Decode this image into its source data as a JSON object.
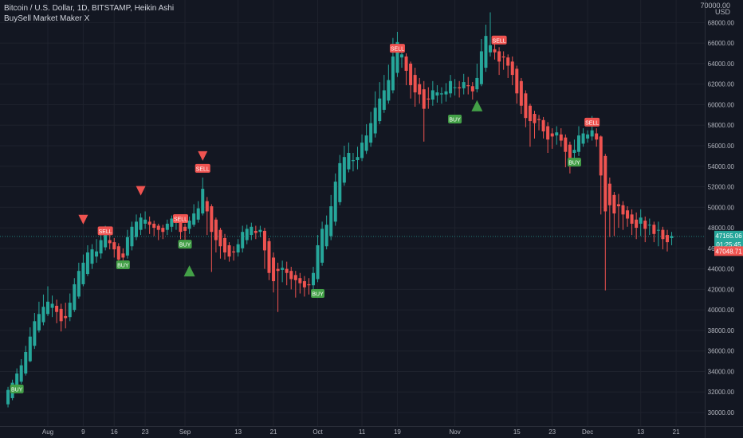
{
  "header": {
    "title": "Bitcoin / U.S. Dollar, 1D, BITSTAMP, Heikin Ashi",
    "indicator": "BuySell Market Maker X"
  },
  "axis": {
    "unit_top": "70000.00",
    "unit": "USD"
  },
  "price_tags": {
    "last_price": "47165.06",
    "countdown": "01:25:45",
    "open_price": "47048.71"
  },
  "colors": {
    "background": "#131722",
    "up": "#26a69a",
    "down": "#ef5350",
    "buy": "#43a047",
    "sell": "#ef5350",
    "grid": "#1e222d",
    "text": "#b2b5be"
  },
  "chart_data": {
    "type": "candlestick",
    "title": "Bitcoin / U.S. Dollar, 1D, BITSTAMP, Heikin Ashi",
    "y_range": [
      29000,
      70000
    ],
    "y_ticks": [
      30000,
      32000,
      34000,
      36000,
      38000,
      40000,
      42000,
      44000,
      46000,
      48000,
      50000,
      52000,
      54000,
      56000,
      58000,
      60000,
      62000,
      64000,
      66000,
      68000
    ],
    "x_ticks": [
      {
        "label": "Aug",
        "day": 0
      },
      {
        "label": "9",
        "day": 8
      },
      {
        "label": "16",
        "day": 15
      },
      {
        "label": "23",
        "day": 22
      },
      {
        "label": "Sep",
        "day": 31
      },
      {
        "label": "13",
        "day": 43
      },
      {
        "label": "21",
        "day": 51
      },
      {
        "label": "Oct",
        "day": 61
      },
      {
        "label": "11",
        "day": 71
      },
      {
        "label": "19",
        "day": 79
      },
      {
        "label": "Nov",
        "day": 92
      },
      {
        "label": "15",
        "day": 106
      },
      {
        "label": "23",
        "day": 114
      },
      {
        "label": "Dec",
        "day": 122
      },
      {
        "label": "13",
        "day": 134
      },
      {
        "label": "21",
        "day": 142
      }
    ],
    "candles": [
      [
        -9,
        30800,
        32200,
        32500,
        30500
      ],
      [
        -8,
        31400,
        32900,
        33200,
        31200
      ],
      [
        -7,
        32100,
        33800,
        34300,
        31900
      ],
      [
        -6,
        33000,
        34600,
        35200,
        32800
      ],
      [
        -5,
        33800,
        35900,
        36500,
        33600
      ],
      [
        -4,
        35000,
        37400,
        38300,
        34900
      ],
      [
        -3,
        36500,
        38900,
        39700,
        36200
      ],
      [
        -2,
        38000,
        39600,
        40800,
        37800
      ],
      [
        -1,
        38800,
        40300,
        41500,
        38500
      ],
      [
        0,
        39600,
        40800,
        42300,
        39400
      ],
      [
        1,
        40200,
        40600,
        41400,
        39300
      ],
      [
        2,
        40400,
        39800,
        41000,
        38700
      ],
      [
        3,
        40100,
        38900,
        40600,
        37900
      ],
      [
        4,
        39400,
        39200,
        40700,
        38200
      ],
      [
        5,
        39300,
        40700,
        41600,
        38900
      ],
      [
        6,
        40000,
        42500,
        43100,
        39800
      ],
      [
        7,
        41300,
        43800,
        44600,
        41100
      ],
      [
        8,
        42500,
        44600,
        45400,
        42300
      ],
      [
        9,
        43500,
        45600,
        46300,
        43300
      ],
      [
        10,
        44500,
        45900,
        46400,
        44000
      ],
      [
        11,
        45200,
        45700,
        46900,
        44600
      ],
      [
        12,
        45500,
        46800,
        47400,
        45000
      ],
      [
        13,
        46100,
        47500,
        48200,
        45800
      ],
      [
        14,
        46800,
        46500,
        47600,
        45900
      ],
      [
        15,
        46600,
        45900,
        47000,
        45100
      ],
      [
        16,
        46200,
        44900,
        46500,
        44500
      ],
      [
        17,
        45500,
        45100,
        46000,
        44300
      ],
      [
        18,
        45300,
        47100,
        47800,
        45000
      ],
      [
        19,
        46200,
        48100,
        48600,
        45800
      ],
      [
        20,
        47100,
        48600,
        49300,
        46800
      ],
      [
        21,
        47800,
        49000,
        49400,
        47300
      ],
      [
        22,
        48400,
        48800,
        49600,
        47900
      ],
      [
        23,
        48600,
        48300,
        49100,
        47400
      ],
      [
        24,
        48400,
        48000,
        48700,
        47200
      ],
      [
        25,
        48200,
        47800,
        48400,
        46800
      ],
      [
        26,
        48000,
        47600,
        48300,
        46900
      ],
      [
        27,
        47800,
        48400,
        48800,
        47300
      ],
      [
        28,
        48100,
        48900,
        49200,
        47600
      ],
      [
        29,
        48500,
        48600,
        49300,
        47800
      ],
      [
        30,
        48600,
        47600,
        48900,
        46900
      ],
      [
        31,
        48100,
        47700,
        48400,
        46800
      ],
      [
        32,
        47900,
        48700,
        49100,
        47400
      ],
      [
        33,
        48300,
        49400,
        50300,
        48100
      ],
      [
        34,
        48800,
        49900,
        50600,
        48500
      ],
      [
        35,
        49400,
        51800,
        52900,
        49200
      ],
      [
        36,
        50600,
        49600,
        51000,
        47300
      ],
      [
        37,
        50100,
        47600,
        50300,
        43700
      ],
      [
        38,
        48800,
        46800,
        49000,
        45600
      ],
      [
        39,
        47800,
        46200,
        48000,
        45000
      ],
      [
        40,
        47000,
        45600,
        47400,
        44900
      ],
      [
        41,
        46300,
        45200,
        46600,
        44700
      ],
      [
        42,
        45700,
        45600,
        46200,
        44800
      ],
      [
        43,
        45600,
        46400,
        46900,
        45200
      ],
      [
        44,
        46000,
        47600,
        48200,
        45600
      ],
      [
        45,
        46800,
        47900,
        48300,
        46400
      ],
      [
        46,
        47300,
        48100,
        48500,
        46800
      ],
      [
        47,
        47700,
        47500,
        48200,
        46900
      ],
      [
        48,
        47600,
        47800,
        48200,
        47100
      ],
      [
        49,
        47700,
        45800,
        48000,
        44000
      ],
      [
        50,
        46700,
        43600,
        47000,
        42900
      ],
      [
        51,
        45100,
        42800,
        45600,
        41700
      ],
      [
        52,
        44000,
        43800,
        44600,
        39800
      ],
      [
        53,
        43900,
        44100,
        44800,
        42700
      ],
      [
        54,
        44000,
        43600,
        44700,
        42400
      ],
      [
        55,
        43800,
        43000,
        44200,
        42000
      ],
      [
        56,
        43400,
        42900,
        43800,
        41200
      ],
      [
        57,
        43100,
        42600,
        43600,
        41600
      ],
      [
        58,
        42800,
        42200,
        43300,
        41300
      ],
      [
        59,
        42500,
        42400,
        43100,
        41500
      ],
      [
        60,
        42400,
        43600,
        44200,
        41600
      ],
      [
        61,
        43000,
        46300,
        47300,
        42700
      ],
      [
        62,
        44600,
        47900,
        48600,
        44300
      ],
      [
        63,
        46200,
        48300,
        49200,
        45900
      ],
      [
        64,
        47200,
        50100,
        51200,
        46800
      ],
      [
        65,
        48600,
        52500,
        53300,
        48200
      ],
      [
        66,
        50500,
        54300,
        55100,
        50200
      ],
      [
        67,
        52400,
        54900,
        56000,
        52100
      ],
      [
        68,
        53700,
        55300,
        56300,
        53400
      ],
      [
        69,
        54500,
        54600,
        55300,
        53500
      ],
      [
        70,
        54600,
        54900,
        55900,
        53700
      ],
      [
        71,
        54800,
        56300,
        57100,
        54500
      ],
      [
        72,
        55500,
        57000,
        58100,
        55200
      ],
      [
        73,
        56300,
        58200,
        59300,
        55900
      ],
      [
        74,
        57200,
        59700,
        61300,
        56800
      ],
      [
        75,
        58400,
        60600,
        62200,
        58100
      ],
      [
        76,
        59500,
        61400,
        62900,
        59200
      ],
      [
        77,
        60400,
        62400,
        63900,
        60100
      ],
      [
        78,
        61400,
        64700,
        66500,
        61100
      ],
      [
        79,
        63100,
        66100,
        67100,
        62700
      ],
      [
        80,
        64600,
        64900,
        65700,
        63600
      ],
      [
        81,
        64700,
        63300,
        65000,
        61900
      ],
      [
        82,
        64000,
        61900,
        64200,
        60600
      ],
      [
        83,
        62900,
        61200,
        63600,
        59800
      ],
      [
        84,
        62000,
        61000,
        62600,
        60100
      ],
      [
        85,
        61500,
        59600,
        62300,
        56400
      ],
      [
        86,
        60600,
        60500,
        61700,
        59600
      ],
      [
        87,
        60500,
        61400,
        62300,
        59900
      ],
      [
        88,
        60900,
        61200,
        61900,
        60200
      ],
      [
        89,
        61000,
        61100,
        61700,
        60100
      ],
      [
        90,
        61000,
        61300,
        62100,
        60300
      ],
      [
        91,
        61100,
        62300,
        62900,
        60700
      ],
      [
        92,
        61700,
        61700,
        62500,
        60900
      ],
      [
        93,
        61700,
        61600,
        62300,
        60700
      ],
      [
        94,
        61600,
        62200,
        63000,
        61000
      ],
      [
        95,
        61900,
        61800,
        62700,
        61000
      ],
      [
        96,
        61800,
        61300,
        62200,
        60500
      ],
      [
        97,
        61500,
        62600,
        64000,
        61200
      ],
      [
        98,
        62000,
        65200,
        66400,
        61800
      ],
      [
        99,
        63600,
        66700,
        67800,
        63200
      ],
      [
        100,
        65100,
        65800,
        69000,
        64700
      ],
      [
        101,
        65400,
        65100,
        66200,
        64400
      ],
      [
        102,
        65200,
        64200,
        65600,
        62900
      ],
      [
        103,
        64700,
        64600,
        65200,
        63400
      ],
      [
        104,
        64600,
        63800,
        64900,
        62600
      ],
      [
        105,
        64200,
        62900,
        64700,
        61900
      ],
      [
        106,
        63500,
        61100,
        63800,
        60100
      ],
      [
        107,
        62300,
        59900,
        62600,
        59100
      ],
      [
        108,
        61100,
        58700,
        61400,
        57800
      ],
      [
        109,
        59900,
        58400,
        60100,
        55900
      ],
      [
        110,
        59100,
        58200,
        59400,
        56700
      ],
      [
        111,
        58600,
        58500,
        59000,
        57500
      ],
      [
        112,
        58500,
        57400,
        58800,
        56700
      ],
      [
        113,
        57900,
        56600,
        58300,
        55300
      ],
      [
        114,
        57200,
        56900,
        57700,
        55700
      ],
      [
        115,
        57000,
        57300,
        57900,
        56100
      ],
      [
        116,
        57100,
        56500,
        57700,
        55900
      ],
      [
        117,
        56800,
        55400,
        57100,
        53900
      ],
      [
        118,
        56100,
        54500,
        56400,
        53300
      ],
      [
        119,
        55300,
        55600,
        56600,
        54600
      ],
      [
        120,
        55400,
        57000,
        57900,
        55000
      ],
      [
        121,
        56200,
        57200,
        57700,
        55900
      ],
      [
        122,
        56700,
        57100,
        57500,
        56300
      ],
      [
        123,
        56900,
        57500,
        58900,
        56500
      ],
      [
        124,
        57200,
        56600,
        57700,
        55900
      ],
      [
        125,
        56900,
        53100,
        57000,
        49300
      ],
      [
        126,
        55000,
        49600,
        55200,
        41900
      ],
      [
        127,
        52300,
        50200,
        52900,
        47100
      ],
      [
        128,
        51200,
        49400,
        51500,
        47200
      ],
      [
        129,
        50300,
        50100,
        51300,
        48000
      ],
      [
        130,
        50200,
        49300,
        50600,
        47800
      ],
      [
        131,
        49700,
        48900,
        50100,
        48100
      ],
      [
        132,
        49300,
        48400,
        49800,
        47300
      ],
      [
        133,
        48800,
        48000,
        49500,
        46900
      ],
      [
        134,
        48400,
        49000,
        49800,
        47200
      ],
      [
        135,
        48700,
        47900,
        49100,
        46600
      ],
      [
        136,
        48300,
        48300,
        48900,
        47300
      ],
      [
        137,
        48300,
        47400,
        48600,
        46600
      ],
      [
        138,
        47800,
        47800,
        48600,
        46200
      ],
      [
        139,
        47800,
        46900,
        48100,
        45900
      ],
      [
        140,
        47300,
        46600,
        47800,
        45700
      ],
      [
        141,
        47000,
        47200,
        47600,
        46300
      ]
    ],
    "signals": [
      {
        "type": "buy",
        "label": "BUY",
        "day": -7,
        "price": 32300
      },
      {
        "type": "sell_arrow",
        "label": "",
        "day": 8,
        "price": 48800
      },
      {
        "type": "sell",
        "label": "SELL",
        "day": 13,
        "price": 47700
      },
      {
        "type": "buy",
        "label": "BUY",
        "day": 17,
        "price": 44400
      },
      {
        "type": "sell_arrow",
        "label": "",
        "day": 21,
        "price": 51600
      },
      {
        "type": "sell",
        "label": "SELL",
        "day": 30,
        "price": 48900
      },
      {
        "type": "buy",
        "label": "BUY",
        "day": 31,
        "price": 46400
      },
      {
        "type": "buy_arrow",
        "label": "",
        "day": 32,
        "price": 43800
      },
      {
        "type": "sell_arrow",
        "label": "",
        "day": 35,
        "price": 55000
      },
      {
        "type": "sell",
        "label": "SELL",
        "day": 35,
        "price": 53800
      },
      {
        "type": "buy",
        "label": "BUY",
        "day": 61,
        "price": 41600
      },
      {
        "type": "sell",
        "label": "SELL",
        "day": 79,
        "price": 65500
      },
      {
        "type": "buy",
        "label": "BUY",
        "day": 92,
        "price": 58600
      },
      {
        "type": "buy_arrow",
        "label": "",
        "day": 97,
        "price": 59900
      },
      {
        "type": "sell",
        "label": "SELL",
        "day": 102,
        "price": 66300
      },
      {
        "type": "buy",
        "label": "BUY",
        "day": 119,
        "price": 54400
      },
      {
        "type": "sell",
        "label": "SELL",
        "day": 123,
        "price": 58300
      }
    ],
    "last_price": 47165.06,
    "open_price": 47048.71
  }
}
